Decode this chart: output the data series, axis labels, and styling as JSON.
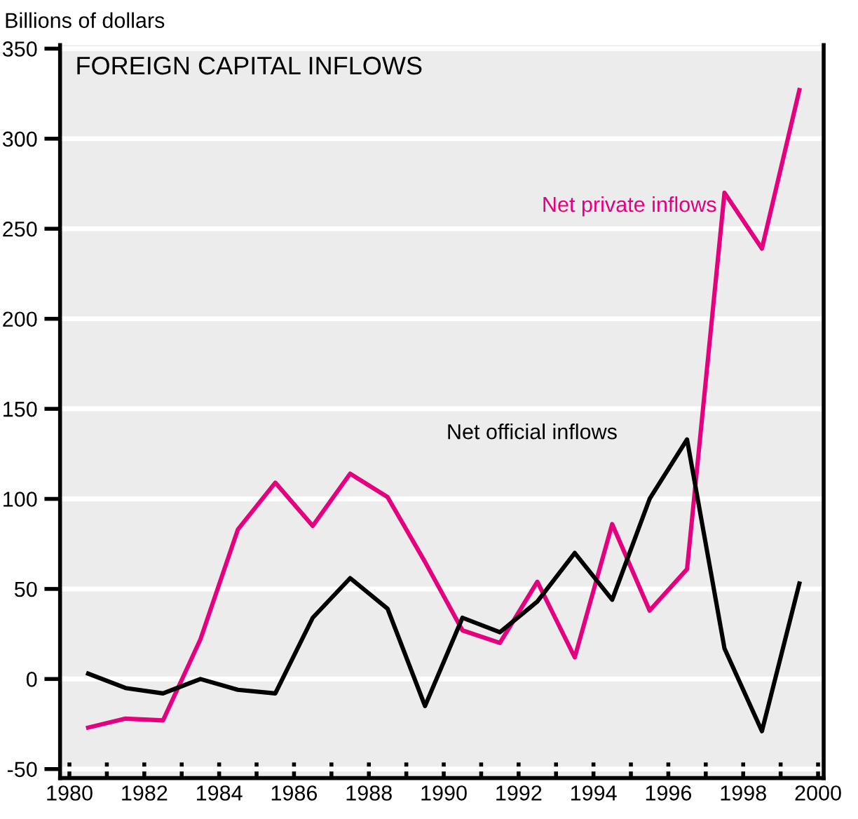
{
  "chart_data": {
    "type": "line",
    "title": "FOREIGN CAPITAL INFLOWS",
    "ylabel": "Billions of dollars",
    "x": [
      1980.5,
      1981.5,
      1982.5,
      1983.5,
      1984.5,
      1985.5,
      1986.5,
      1987.5,
      1988.5,
      1989.5,
      1990.5,
      1991.5,
      1992.5,
      1993.5,
      1994.5,
      1995.5,
      1996.5,
      1997.5,
      1998.5,
      1999.5
    ],
    "series": [
      {
        "name": "Net private inflows",
        "color": "#e5007e",
        "values": [
          -27,
          -22,
          -23,
          22,
          83,
          109,
          85,
          114,
          101,
          65,
          27,
          20,
          54,
          12,
          86,
          38,
          61,
          270,
          239,
          327
        ]
      },
      {
        "name": "Net official inflows",
        "color": "#000000",
        "values": [
          3,
          -5,
          -8,
          0,
          -6,
          -8,
          34,
          56,
          39,
          -15,
          34,
          26,
          43,
          70,
          44,
          100,
          133,
          17,
          -29,
          53
        ]
      }
    ],
    "xlim": [
      1979.75,
      2000.15
    ],
    "ylim": [
      -55,
      352
    ],
    "xticks": [
      1980,
      {
        "value": 1981,
        "label": null
      },
      1982,
      {
        "value": 1983,
        "label": null
      },
      1984,
      {
        "value": 1985,
        "label": null
      },
      1986,
      {
        "value": 1987,
        "label": null
      },
      1988,
      {
        "value": 1989,
        "label": null
      },
      1990,
      {
        "value": 1991,
        "label": null
      },
      1992,
      {
        "value": 1993,
        "label": null
      },
      1994,
      {
        "value": 1995,
        "label": null
      },
      1996,
      {
        "value": 1997,
        "label": null
      },
      1998,
      {
        "value": 1999,
        "label": null
      },
      2000
    ],
    "yticks": [
      -50,
      0,
      50,
      100,
      150,
      200,
      250,
      300,
      350
    ],
    "grid": "y",
    "legend": false,
    "marker": "none",
    "line_style": "solid"
  }
}
